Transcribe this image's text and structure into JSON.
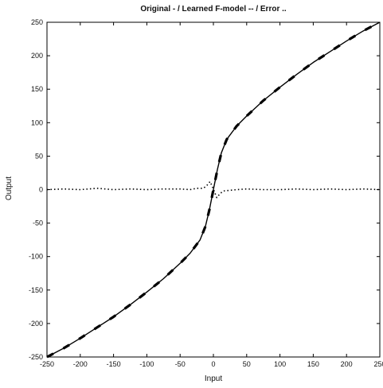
{
  "chart_data": {
    "type": "line",
    "title": "Original - / Learned F-model -- / Error ..",
    "xlabel": "Input",
    "ylabel": "Output",
    "xlim": [
      -250,
      250
    ],
    "ylim": [
      -250,
      250
    ],
    "xticks": [
      -250,
      -200,
      -150,
      -100,
      -50,
      0,
      50,
      100,
      150,
      200,
      250
    ],
    "yticks": [
      -250,
      -200,
      -150,
      -100,
      -50,
      0,
      50,
      100,
      150,
      200,
      250
    ],
    "grid": false,
    "legend": "none",
    "series": [
      {
        "style": "solid",
        "x": [
          -250,
          -225,
          -200,
          -175,
          -150,
          -125,
          -100,
          -75,
          -50,
          -35,
          -20,
          -12,
          -6,
          -3,
          0,
          3,
          6,
          12,
          20,
          35,
          50,
          75,
          100,
          125,
          150,
          175,
          200,
          225,
          250
        ],
        "y": [
          -250,
          -237,
          -222,
          -206,
          -190,
          -172,
          -153,
          -133,
          -110,
          -95,
          -75,
          -55,
          -30,
          -15,
          0,
          15,
          30,
          55,
          75,
          95,
          110,
          133,
          153,
          172,
          190,
          206,
          222,
          237,
          250
        ]
      },
      {
        "style": "dashed",
        "x": [
          -250,
          -225,
          -200,
          -175,
          -150,
          -125,
          -100,
          -75,
          -50,
          -35,
          -20,
          -12,
          -6,
          -3,
          0,
          3,
          6,
          12,
          20,
          35,
          50,
          75,
          100,
          125,
          150,
          175,
          200,
          225,
          250
        ],
        "y": [
          -250,
          -237,
          -222,
          -206,
          -190,
          -172,
          -153,
          -133,
          -110,
          -95,
          -75,
          -55,
          -30,
          -15,
          0,
          15,
          30,
          55,
          75,
          95,
          110,
          133,
          153,
          172,
          190,
          206,
          222,
          237,
          250
        ]
      },
      {
        "style": "dotted",
        "x": [
          -250,
          -225,
          -200,
          -175,
          -150,
          -125,
          -100,
          -75,
          -50,
          -35,
          -25,
          -15,
          -10,
          -5,
          0,
          5,
          10,
          15,
          25,
          35,
          50,
          75,
          100,
          125,
          150,
          175,
          200,
          225,
          250
        ],
        "y": [
          0,
          1,
          0,
          2,
          0,
          1,
          0,
          1,
          1,
          0,
          2,
          2,
          6,
          12,
          1,
          -12,
          -6,
          -2,
          -1,
          0,
          1,
          0,
          0,
          1,
          0,
          1,
          0,
          1,
          0
        ]
      }
    ]
  }
}
